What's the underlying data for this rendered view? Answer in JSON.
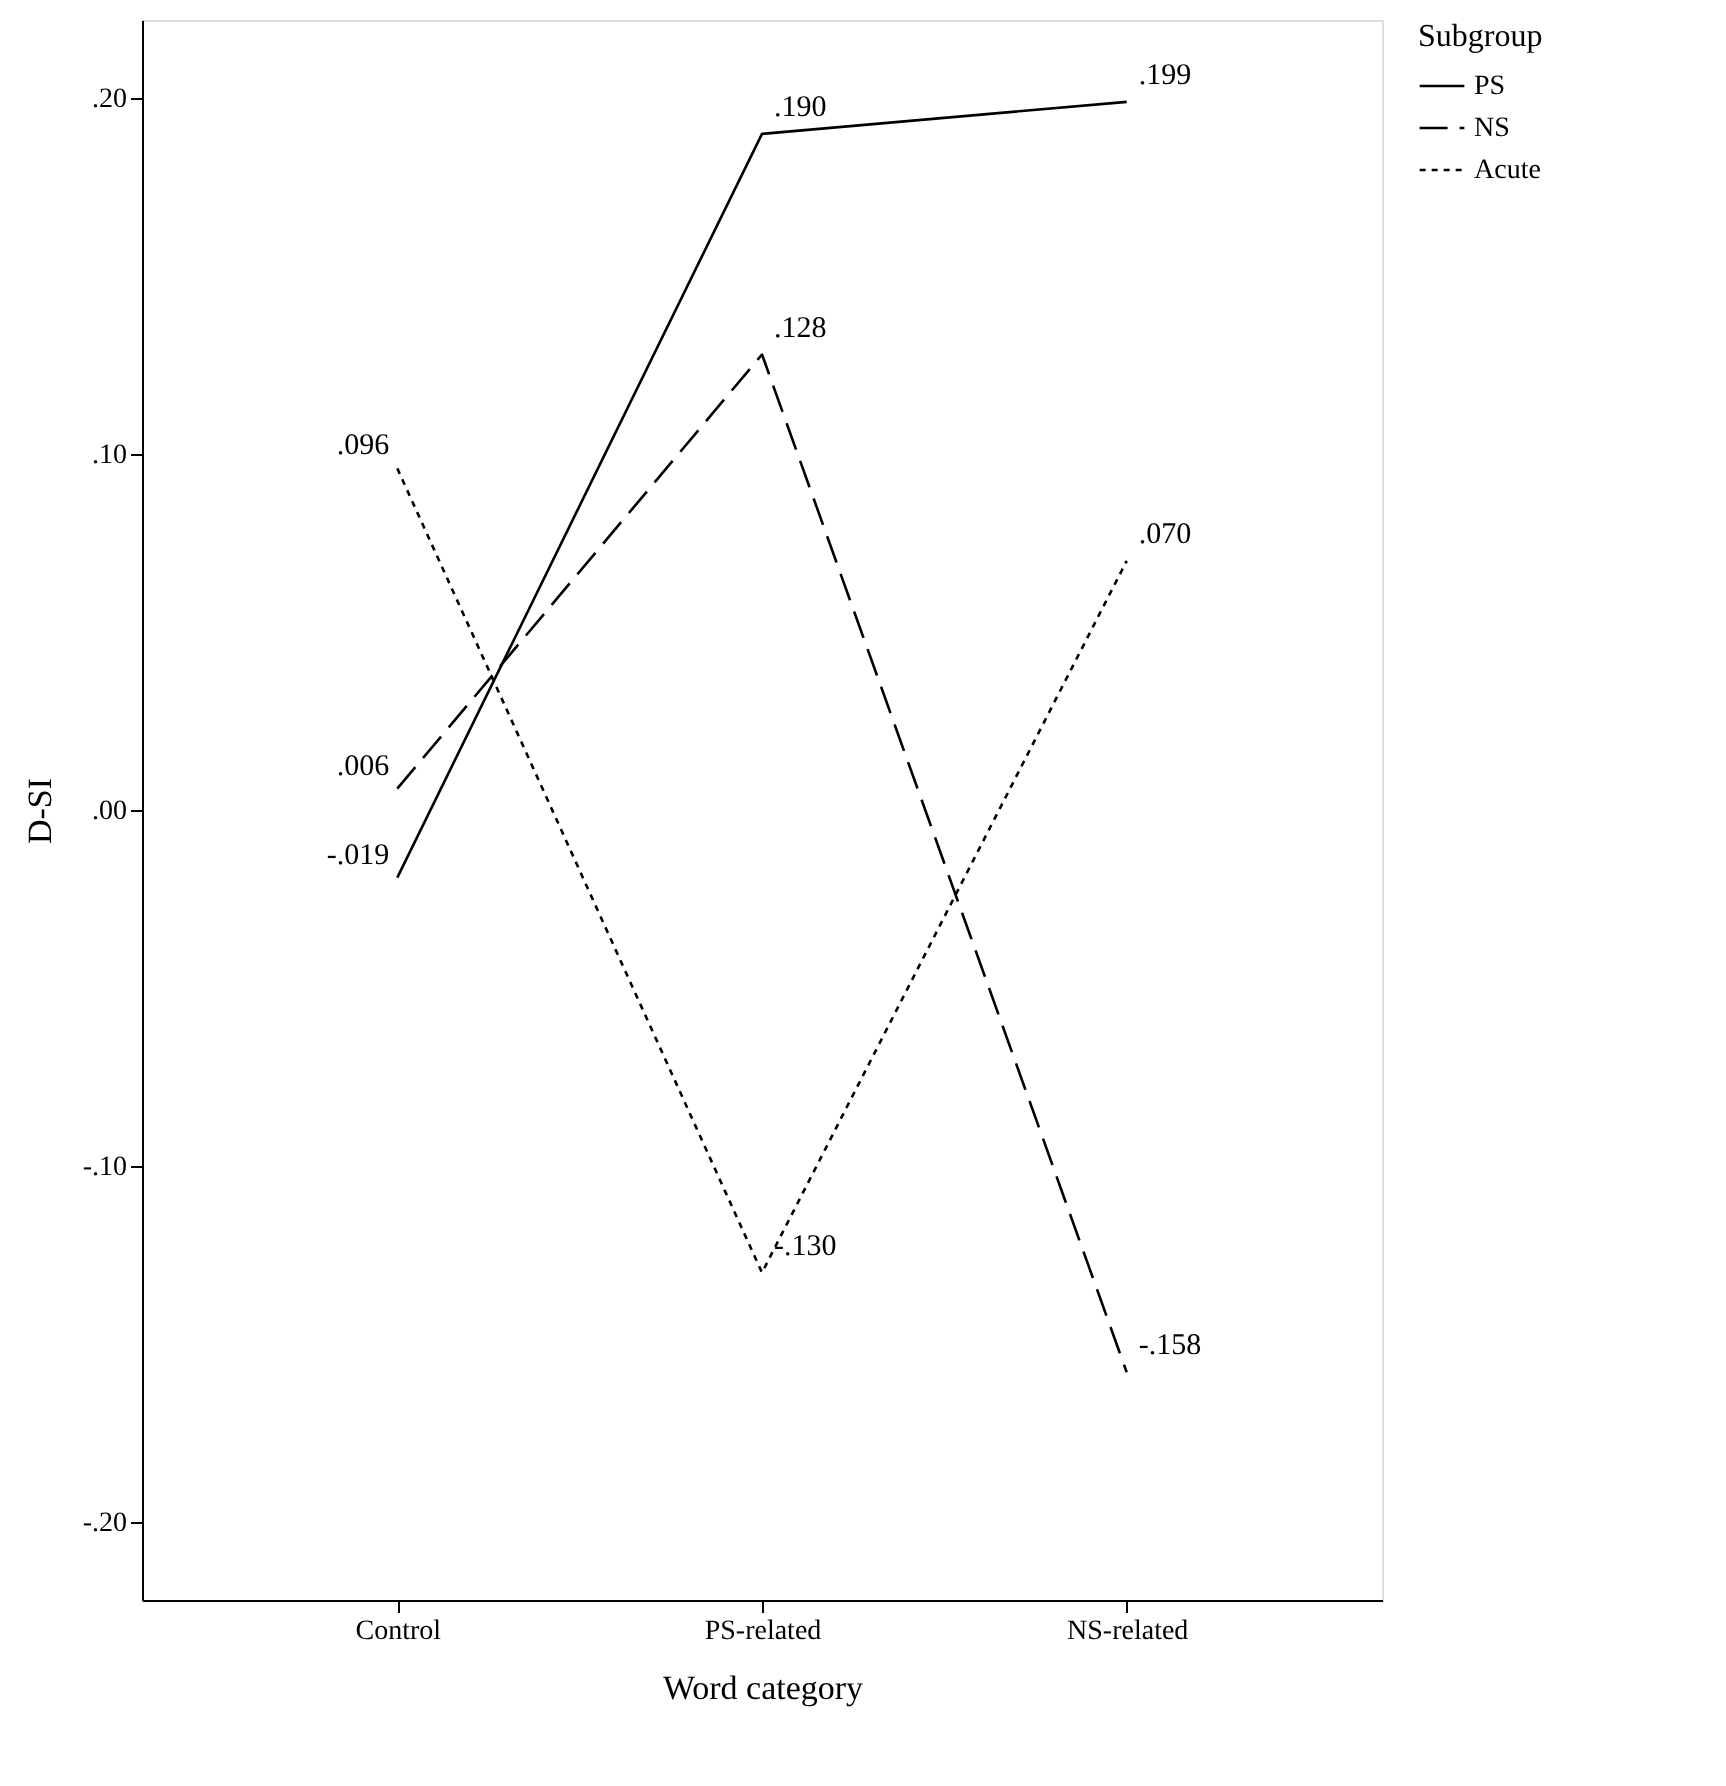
{
  "chart_data": {
    "type": "line",
    "xlabel": "Word category",
    "ylabel": "D-SI",
    "legend_title": "Subgroup",
    "categories": [
      "Control",
      "PS-related",
      "NS-related"
    ],
    "series": [
      {
        "name": "PS",
        "color": "#000000",
        "line_style": "solid",
        "values": [
          -0.019,
          0.19,
          0.199
        ],
        "value_labels": [
          "-.019",
          ".190",
          ".199"
        ]
      },
      {
        "name": "NS",
        "color": "#000000",
        "line_style": "dashed",
        "values": [
          0.006,
          0.128,
          -0.158
        ],
        "value_labels": [
          ".006",
          ".128",
          "-.158"
        ]
      },
      {
        "name": "Acute",
        "color": "#000000",
        "line_style": "dotted",
        "values": [
          0.096,
          -0.13,
          0.07
        ],
        "value_labels": [
          ".096",
          "-.130",
          ".070"
        ]
      }
    ],
    "ylim": [
      -0.222,
      0.222
    ],
    "yticks": [
      {
        "value": 0.2,
        "label": ".20"
      },
      {
        "value": 0.1,
        "label": ".10"
      },
      {
        "value": 0.0,
        "label": ".00"
      },
      {
        "value": -0.1,
        "label": "-.10"
      },
      {
        "value": -0.2,
        "label": "-.20"
      }
    ],
    "grid": false,
    "legend": "top right",
    "marker": "none"
  }
}
